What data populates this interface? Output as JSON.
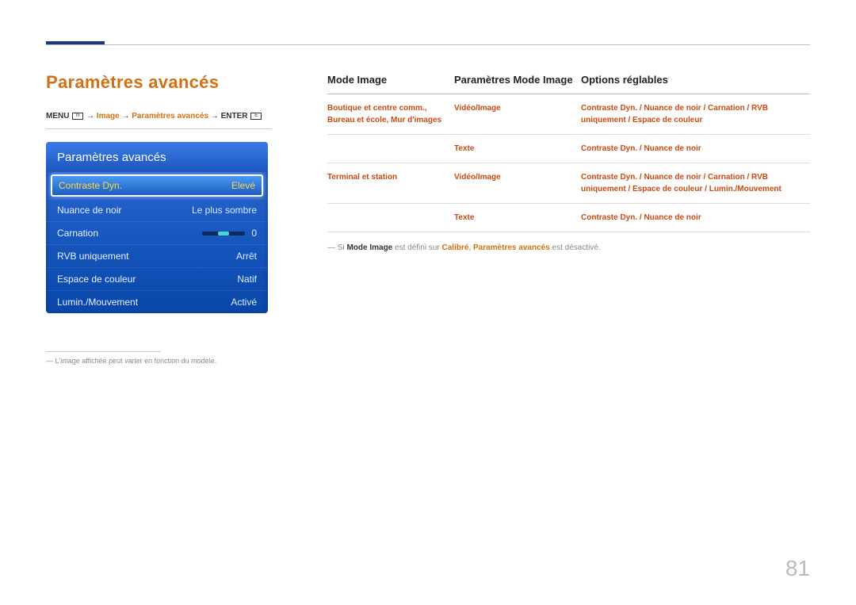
{
  "colors": {
    "accent_orange": "#d47012",
    "table_text": "#c94a12",
    "header_text": "#222222",
    "muted": "#888888",
    "rule": "#bbbbbb",
    "menu_grad_top": "#2c6cd6",
    "menu_grad_bottom": "#0846a9",
    "menu_selected_text": "#ffd24d",
    "slider_fill": "#4bd6d0"
  },
  "page": {
    "title": "Paramètres avancés",
    "number": "81"
  },
  "breadcrumb": {
    "menu_label": "MENU",
    "arrow": " → ",
    "path1": "Image",
    "path2": "Paramètres avancés",
    "enter_label": "ENTER"
  },
  "menu": {
    "header": "Paramètres avancés",
    "items": [
      {
        "label": "Contraste Dyn.",
        "value": "Elevé",
        "selected": true,
        "type": "text"
      },
      {
        "label": "Nuance de noir",
        "value": "Le plus sombre",
        "selected": false,
        "type": "text"
      },
      {
        "label": "Carnation",
        "value": "0",
        "selected": false,
        "type": "slider"
      },
      {
        "label": "RVB uniquement",
        "value": "Arrêt",
        "selected": false,
        "type": "text"
      },
      {
        "label": "Espace de couleur",
        "value": "Natif",
        "selected": false,
        "type": "text"
      },
      {
        "label": "Lumin./Mouvement",
        "value": "Activé",
        "selected": false,
        "type": "text"
      }
    ]
  },
  "footnote_left": "L'image affichée peut varier en fonction du modèle.",
  "table": {
    "headers": {
      "col1": "Mode Image",
      "col2": "Paramètres Mode Image",
      "col3": "Options réglables"
    },
    "rows": [
      {
        "c1": "Boutique et centre comm., Bureau et école, Mur d'images",
        "c2": "Vidéo/Image",
        "c3": "Contraste Dyn. / Nuance de noir / Carnation / RVB uniquement / Espace de couleur"
      },
      {
        "c1": "",
        "c2": "Texte",
        "c3": "Contraste Dyn. / Nuance de noir"
      },
      {
        "c1": "Terminal et station",
        "c2": "Vidéo/Image",
        "c3": "Contraste Dyn. / Nuance de noir / Carnation / RVB uniquement / Espace de couleur / Lumin./Mouvement"
      },
      {
        "c1": "",
        "c2": "Texte",
        "c3": "Contraste Dyn. / Nuance de noir"
      }
    ],
    "note": {
      "prefix": "Si ",
      "b1": "Mode Image",
      "mid1": " est défini sur ",
      "o1": "Calibré",
      "sep": ", ",
      "o2": "Paramètres avancés",
      "suffix": " est désactivé."
    }
  }
}
